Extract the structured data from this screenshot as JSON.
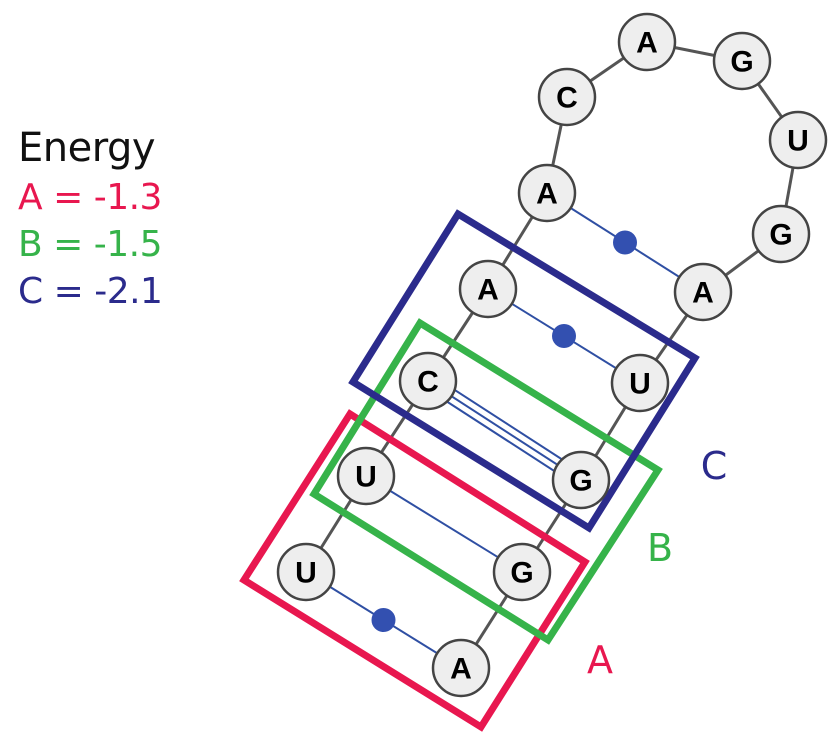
{
  "legend": {
    "title": "Energy",
    "entries": [
      {
        "label": "A",
        "equals": "=",
        "value": "-1.3",
        "color": "#e8174f"
      },
      {
        "label": "B",
        "equals": "=",
        "value": "-1.5",
        "color": "#36b34a"
      },
      {
        "label": "C",
        "equals": "=",
        "value": "-2.1",
        "color": "#2b2b8c"
      }
    ]
  },
  "colors": {
    "backbone": "#555555",
    "pair_line": "#2f4fa3",
    "wobble_dot": "#3350b0",
    "node_fill": "#eeeeee",
    "node_stroke": "#444444"
  },
  "nucleotides": [
    {
      "id": "n1",
      "base": "U"
    },
    {
      "id": "n2",
      "base": "U"
    },
    {
      "id": "n3",
      "base": "C"
    },
    {
      "id": "n4",
      "base": "A"
    },
    {
      "id": "n5",
      "base": "A"
    },
    {
      "id": "n6",
      "base": "C"
    },
    {
      "id": "n7",
      "base": "A"
    },
    {
      "id": "n8",
      "base": "G"
    },
    {
      "id": "n9",
      "base": "U"
    },
    {
      "id": "n10",
      "base": "G"
    },
    {
      "id": "n11",
      "base": "A"
    },
    {
      "id": "n12",
      "base": "U"
    },
    {
      "id": "n13",
      "base": "G"
    },
    {
      "id": "n14",
      "base": "G"
    },
    {
      "id": "n15",
      "base": "A"
    }
  ],
  "pairs": [
    {
      "from": "n1",
      "to": "n15",
      "type": "wobble"
    },
    {
      "from": "n2",
      "to": "n14",
      "type": "single"
    },
    {
      "from": "n3",
      "to": "n13",
      "type": "triple"
    },
    {
      "from": "n4",
      "to": "n12",
      "type": "wobble"
    },
    {
      "from": "n5",
      "to": "n11",
      "type": "wobble"
    }
  ],
  "boxes": [
    {
      "label": "A",
      "color": "#e8174f"
    },
    {
      "label": "B",
      "color": "#36b34a"
    },
    {
      "label": "C",
      "color": "#2b2b8c"
    }
  ]
}
